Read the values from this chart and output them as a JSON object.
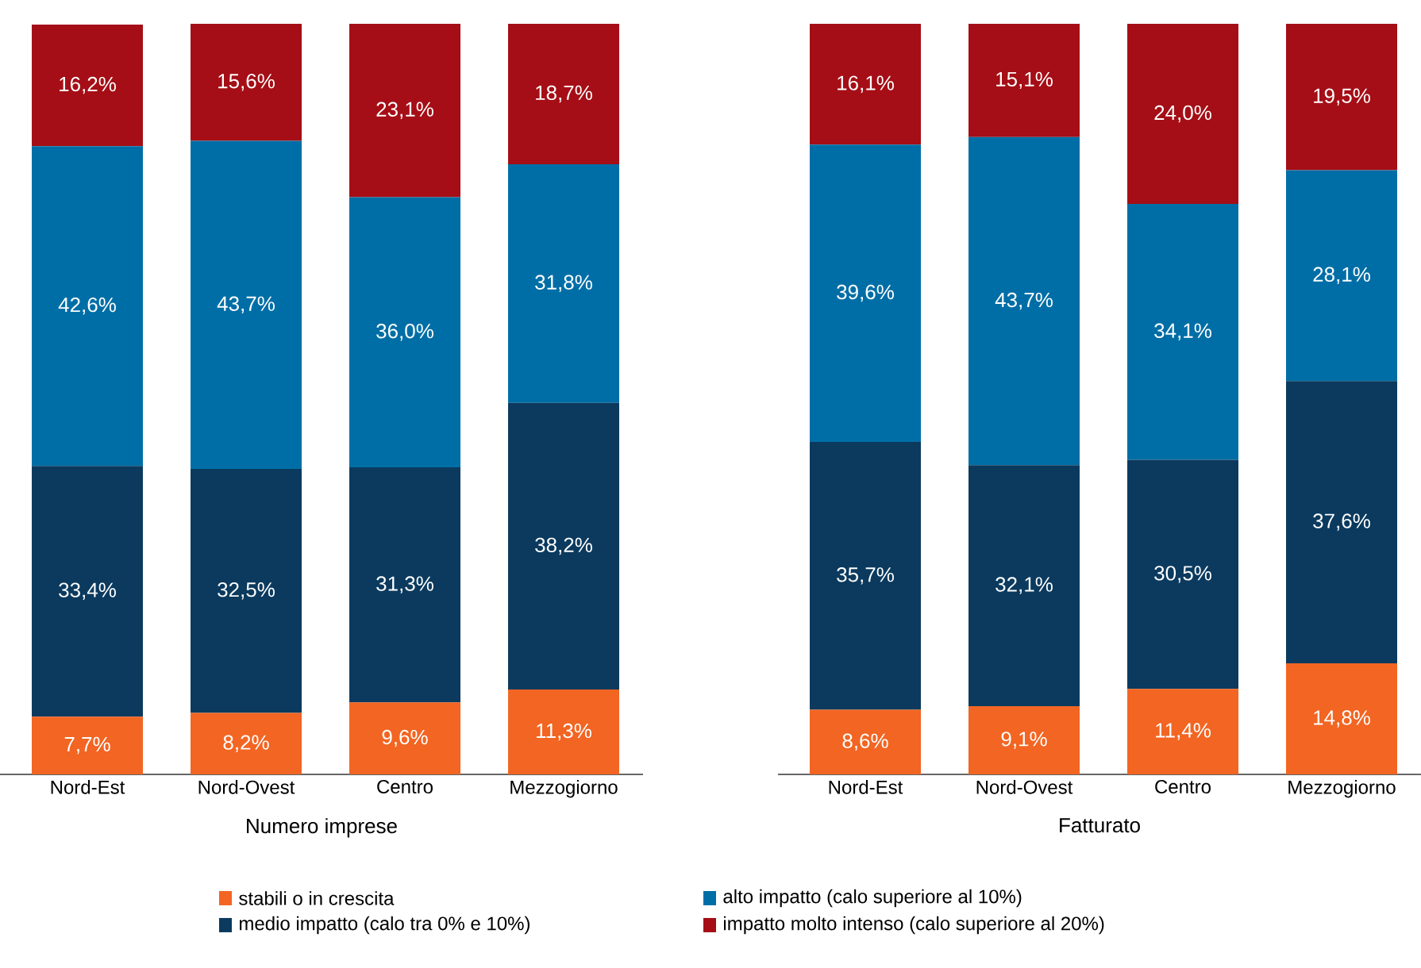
{
  "chart_data": [
    {
      "type": "bar",
      "stacked": true,
      "xlabel": "Numero imprese",
      "categories": [
        "Nord-Est",
        "Nord-Ovest",
        "Centro",
        "Mezzogiorno"
      ],
      "tick_labels": "x",
      "legend": "bottom",
      "series": [
        {
          "name": "stabili o in crescita",
          "color": "#f26522",
          "values": [
            7.7,
            8.2,
            9.6,
            11.3
          ],
          "value_labels": [
            "7,7%",
            "8,2%",
            "9,6%",
            "11,3%"
          ]
        },
        {
          "name": "medio impatto (calo tra 0% e 10%)",
          "color": "#0b3a5e",
          "values": [
            33.4,
            32.5,
            31.3,
            38.2
          ],
          "value_labels": [
            "33,4%",
            "32,5%",
            "31,3%",
            "38,2%"
          ]
        },
        {
          "name": "alto impatto (calo superiore al 10%)",
          "color": "#006ea6",
          "values": [
            42.6,
            43.7,
            36.0,
            31.8
          ],
          "value_labels": [
            "42,6%",
            "43,7%",
            "36,0%",
            "31,8%"
          ]
        },
        {
          "name": "impatto molto intenso (calo superiore al 20%)",
          "color": "#a50e16",
          "values": [
            16.2,
            15.6,
            23.1,
            18.7
          ],
          "value_labels": [
            "16,2%",
            "15,6%",
            "23,1%",
            "18,7%"
          ]
        }
      ]
    },
    {
      "type": "bar",
      "stacked": true,
      "xlabel": "Fatturato",
      "categories": [
        "Nord-Est",
        "Nord-Ovest",
        "Centro",
        "Mezzogiorno"
      ],
      "tick_labels": "x",
      "series": [
        {
          "color": "#f26522",
          "values": [
            8.6,
            9.1,
            11.4,
            14.8
          ],
          "value_labels": [
            "8,6%",
            "9,1%",
            "11,4%",
            "14,8%"
          ]
        },
        {
          "color": "#0b3a5e",
          "values": [
            35.7,
            32.1,
            30.5,
            37.6
          ],
          "value_labels": [
            "35,7%",
            "32,1%",
            "30,5%",
            "37,6%"
          ]
        },
        {
          "color": "#006ea6",
          "values": [
            39.6,
            43.7,
            34.1,
            28.1
          ],
          "value_labels": [
            "39,6%",
            "43,7%",
            "34,1%",
            "28,1%"
          ]
        },
        {
          "color": "#a50e16",
          "values": [
            16.1,
            15.1,
            24.0,
            19.5
          ],
          "value_labels": [
            "16,1%",
            "15,1%",
            "24,0%",
            "19,5%"
          ]
        }
      ]
    }
  ]
}
